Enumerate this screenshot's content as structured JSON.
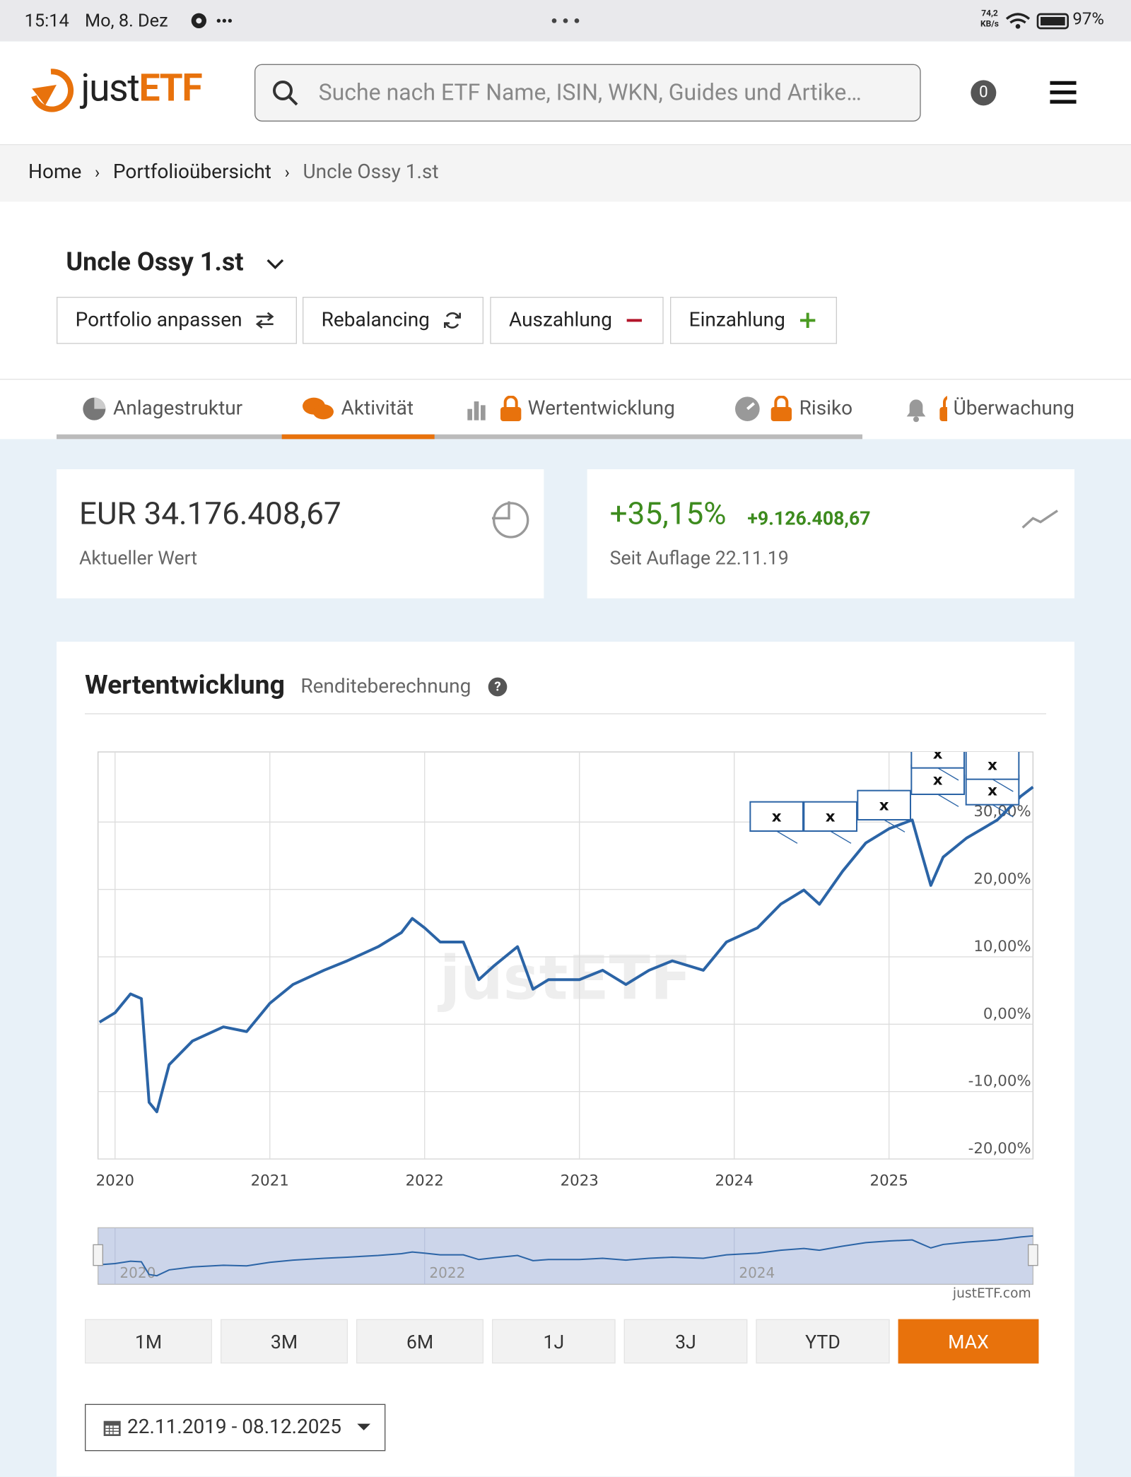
{
  "status_bar": {
    "time": "15:14",
    "date": "Mo, 8. Dez",
    "net_speed": "74,2 KB/s",
    "battery": "97%"
  },
  "header": {
    "logo": [
      "just",
      "ETF"
    ],
    "search_placeholder": "Suche nach ETF Name, ISIN, WKN, Guides und Artike…",
    "cart_count": "0"
  },
  "breadcrumb": [
    "Home",
    "Portfolioübersicht",
    "Uncle Ossy 1.st"
  ],
  "portfolio": {
    "name": "Uncle Ossy 1.st",
    "actions": [
      "Portfolio anpassen",
      "Rebalancing",
      "Auszahlung",
      "Einzahlung"
    ]
  },
  "tabs": [
    "Anlagestruktur",
    "Aktivität",
    "Wertentwicklung",
    "Risiko",
    "Überwachung"
  ],
  "summary": {
    "value": "EUR 34.176.408,67",
    "value_label": "Aktueller Wert",
    "return_pct": "+35,15%",
    "return_abs": "+9.126.408,67",
    "since": "Seit Auflage 22.11.19"
  },
  "chart_data": {
    "type": "line",
    "title": "Wertentwicklung",
    "subtitle": "Renditeberechnung",
    "x": [
      2019.9,
      2020.0,
      2020.1,
      2020.17,
      2020.22,
      2020.27,
      2020.35,
      2020.5,
      2020.7,
      2020.85,
      2021.0,
      2021.15,
      2021.35,
      2021.5,
      2021.7,
      2021.85,
      2021.92,
      2022.0,
      2022.1,
      2022.25,
      2022.35,
      2022.45,
      2022.6,
      2022.7,
      2022.8,
      2023.0,
      2023.15,
      2023.3,
      2023.45,
      2023.6,
      2023.8,
      2023.95,
      2024.15,
      2024.3,
      2024.45,
      2024.55,
      2024.7,
      2024.85,
      2025.0,
      2025.15,
      2025.2,
      2025.27,
      2025.35,
      2025.5,
      2025.7,
      2025.85,
      2025.93
    ],
    "values": [
      0.3,
      1.7,
      4.5,
      3.8,
      -11.6,
      -13,
      -6,
      -2.5,
      -0.4,
      -1.1,
      3.1,
      5.9,
      8,
      9.4,
      11.5,
      13.6,
      15.7,
      14.3,
      12.2,
      12.2,
      6.6,
      8.7,
      11.5,
      5.2,
      6.6,
      6.6,
      8,
      5.9,
      8,
      9.4,
      8,
      12.2,
      14.3,
      17.8,
      19.9,
      17.8,
      22.7,
      26.9,
      29,
      30.3,
      26.2,
      20.6,
      24.8,
      27.6,
      30.3,
      33.8,
      35.2
    ],
    "color": "#2b64a6",
    "xlim": [
      2019.89,
      2025.93
    ],
    "xticks": [
      2020,
      2021,
      2022,
      2023,
      2024,
      2025
    ],
    "ylim": [
      -20,
      40.4
    ],
    "yticks": [
      {
        "value": -20,
        "label": "-20,00%"
      },
      {
        "value": -10,
        "label": "-10,00%"
      },
      {
        "value": 0,
        "label": "0,00%"
      },
      {
        "value": 10,
        "label": "10,00%"
      },
      {
        "value": 20,
        "label": "20,00%"
      },
      {
        "value": 30,
        "label": "30,00%"
      }
    ],
    "grid": true,
    "annotations": [
      "x",
      "x",
      "x",
      "x",
      "x",
      "x",
      "x"
    ],
    "watermark": "justETF",
    "credit": "justETF.com",
    "navigator_ticks": [
      2020,
      2022,
      2024
    ]
  },
  "range_buttons": [
    "1M",
    "3M",
    "6M",
    "1J",
    "3J",
    "YTD",
    "MAX"
  ],
  "date_range": "22.11.2019 - 08.12.2025"
}
